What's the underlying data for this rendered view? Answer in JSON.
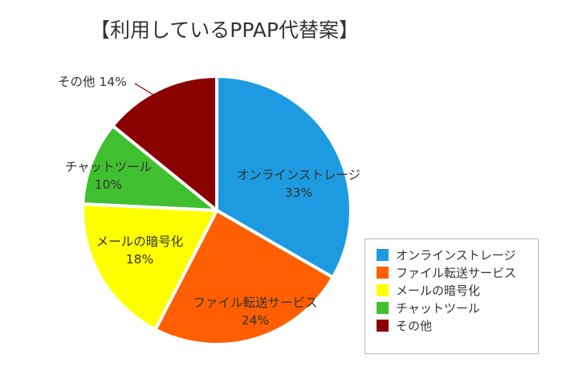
{
  "title": "【利用しているPPAP代替案】",
  "chart_data": {
    "type": "pie",
    "title": "【利用しているPPAP代替案】",
    "categories": [
      "オンラインストレージ",
      "ファイル転送サービス",
      "メールの暗号化",
      "チャットツール",
      "その他"
    ],
    "values": [
      33,
      24,
      18,
      10,
      14
    ],
    "unit": "%",
    "colors": [
      "#1E9BE0",
      "#FF5F00",
      "#FFFF00",
      "#40C030",
      "#8B0000"
    ],
    "start_angle": "12 o'clock, clockwise",
    "legend_position": "bottom-right",
    "data_labels": [
      "33%",
      "24%",
      "18%",
      "10%",
      "14%"
    ]
  },
  "slices": [
    {
      "name": "オンラインストレージ",
      "pct": "33%",
      "color": "#1E9BE0"
    },
    {
      "name": "ファイル転送サービス",
      "pct": "24%",
      "color": "#FF5F00"
    },
    {
      "name": "メールの暗号化",
      "pct": "18%",
      "color": "#FFFF00"
    },
    {
      "name": "チャットツール",
      "pct": "10%",
      "color": "#40C030"
    },
    {
      "name": "その他",
      "pct": "14%",
      "color": "#8B0000"
    }
  ],
  "outside_label": "その他 14%",
  "legend": {
    "items": [
      {
        "label": "オンラインストレージ",
        "color": "#1E9BE0"
      },
      {
        "label": "ファイル転送サービス",
        "color": "#FF5F00"
      },
      {
        "label": "メールの暗号化",
        "color": "#FFFF00"
      },
      {
        "label": "チャットツール",
        "color": "#40C030"
      },
      {
        "label": "その他",
        "color": "#8B0000"
      }
    ]
  }
}
